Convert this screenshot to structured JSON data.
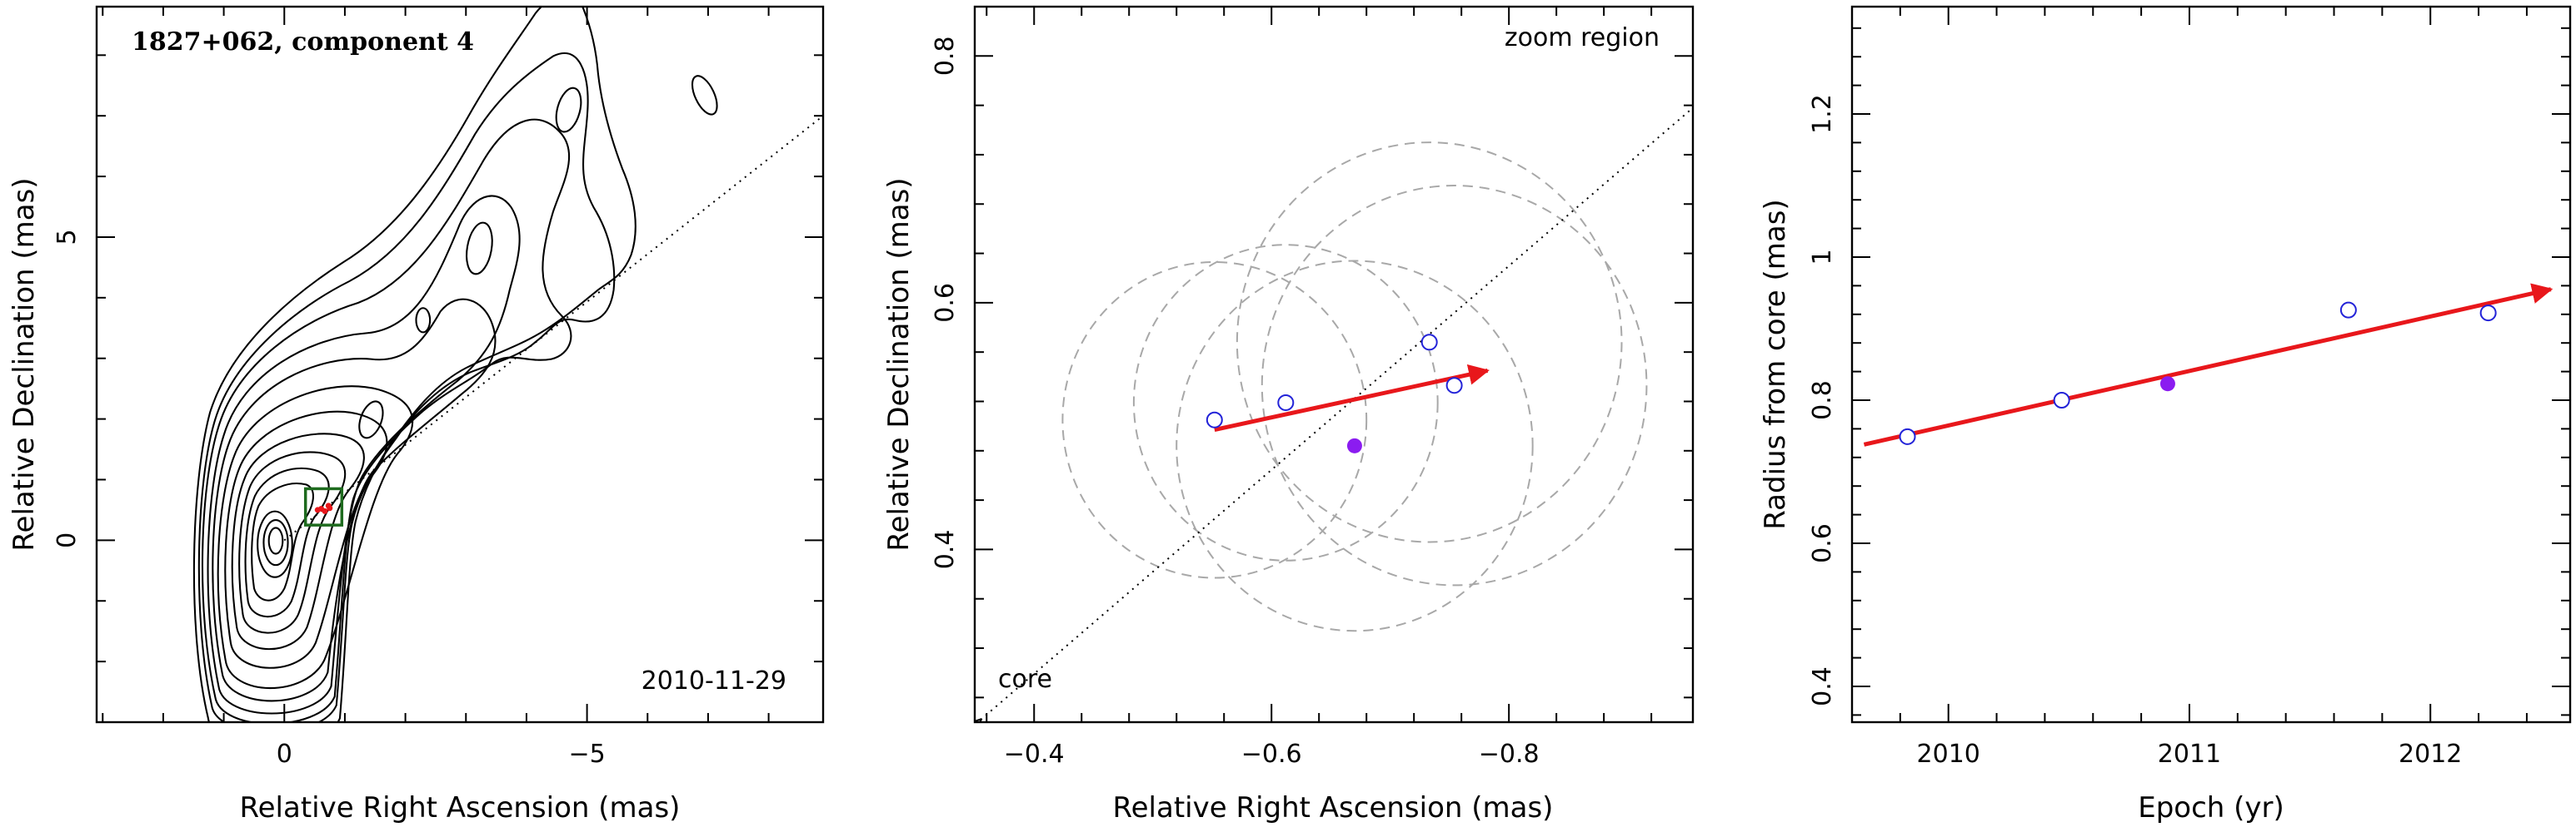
{
  "chart_data": [
    {
      "type": "contour",
      "title": "1827+062, component 4",
      "date_label": "2010-11-29",
      "xlabel": "Relative Right Ascension (mas)",
      "ylabel": "Relative Declination (mas)",
      "xlim": [
        3.1,
        -8.9
      ],
      "ylim": [
        -3.0,
        8.8
      ],
      "xticks": [
        {
          "v": 0,
          "label": "0"
        },
        {
          "v": -5,
          "label": "−5"
        }
      ],
      "yticks": [
        {
          "v": 0,
          "label": "0"
        },
        {
          "v": 5,
          "label": "5"
        }
      ],
      "jet_direction_line": {
        "from": [
          0,
          0
        ],
        "to": [
          -8.9,
          7.0
        ]
      },
      "zoom_box": {
        "x0": -0.35,
        "x1": -0.95,
        "y0": 0.25,
        "y1": 0.85
      },
      "component_positions": [
        [
          -0.55,
          0.5
        ],
        [
          -0.61,
          0.52
        ],
        [
          -0.67,
          0.48
        ],
        [
          -0.73,
          0.57
        ],
        [
          -0.75,
          0.53
        ]
      ],
      "contour_levels_count": 14,
      "colors": {
        "box": "#1e6b1e",
        "arrow": "#e8171b"
      }
    },
    {
      "type": "scatter",
      "xlabel": "Relative Right Ascension (mas)",
      "ylabel": "Relative Declination (mas)",
      "annotations": [
        "zoom region",
        "core"
      ],
      "xlim": [
        -0.35,
        -0.955
      ],
      "ylim": [
        0.26,
        0.84
      ],
      "xticks": [
        {
          "v": -0.4,
          "label": "−0.4"
        },
        {
          "v": -0.6,
          "label": "−0.6"
        },
        {
          "v": -0.8,
          "label": "−0.8"
        }
      ],
      "yticks": [
        {
          "v": 0.4,
          "label": "0.4"
        },
        {
          "v": 0.6,
          "label": "0.6"
        },
        {
          "v": 0.8,
          "label": "0.8"
        }
      ],
      "points": [
        {
          "x": -0.552,
          "y": 0.505,
          "filled": false
        },
        {
          "x": -0.612,
          "y": 0.519,
          "filled": false
        },
        {
          "x": -0.733,
          "y": 0.568,
          "filled": false
        },
        {
          "x": -0.754,
          "y": 0.533,
          "filled": false
        },
        {
          "x": -0.67,
          "y": 0.484,
          "filled": true
        }
      ],
      "circles": [
        {
          "cx": -0.552,
          "cy": 0.505,
          "r": 0.128
        },
        {
          "cx": -0.612,
          "cy": 0.519,
          "r": 0.128
        },
        {
          "cx": -0.733,
          "cy": 0.568,
          "r": 0.162
        },
        {
          "cx": -0.754,
          "cy": 0.533,
          "r": 0.162
        },
        {
          "cx": -0.67,
          "cy": 0.484,
          "r": 0.15
        }
      ],
      "motion_vector": {
        "from": [
          -0.552,
          0.497
        ],
        "to": [
          -0.782,
          0.545
        ]
      },
      "direction_line": {
        "from": [
          -0.955,
          0.758
        ],
        "to": [
          -0.355,
          0.262
        ]
      },
      "colors": {
        "open_marker": "#2323d8",
        "filled_marker": "#8b1cf0",
        "arrow": "#e8171b",
        "circles": "#a8a8a8"
      }
    },
    {
      "type": "scatter",
      "xlabel": "Epoch (yr)",
      "ylabel": "Radius from core (mas)",
      "xlim": [
        2009.6,
        2012.58
      ],
      "ylim": [
        0.35,
        1.35
      ],
      "xticks": [
        {
          "v": 2010,
          "label": "2010"
        },
        {
          "v": 2011,
          "label": "2011"
        },
        {
          "v": 2012,
          "label": "2012"
        }
      ],
      "yticks": [
        {
          "v": 0.4,
          "label": "0.4"
        },
        {
          "v": 0.6,
          "label": "0.6"
        },
        {
          "v": 0.8,
          "label": "0.8"
        },
        {
          "v": 1.0,
          "label": "1"
        },
        {
          "v": 1.2,
          "label": "1.2"
        }
      ],
      "points": [
        {
          "x": 2009.83,
          "y": 0.749,
          "filled": false
        },
        {
          "x": 2010.47,
          "y": 0.8,
          "filled": false
        },
        {
          "x": 2010.91,
          "y": 0.823,
          "filled": true
        },
        {
          "x": 2011.66,
          "y": 0.926,
          "filled": false
        },
        {
          "x": 2012.24,
          "y": 0.922,
          "filled": false
        }
      ],
      "fit_vector": {
        "from": [
          2009.65,
          0.738
        ],
        "to": [
          2012.5,
          0.955
        ]
      },
      "colors": {
        "open_marker": "#2323d8",
        "filled_marker": "#8b1cf0",
        "arrow": "#e8171b"
      }
    }
  ]
}
